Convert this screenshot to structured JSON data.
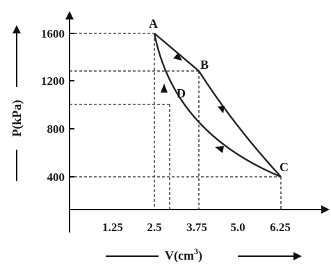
{
  "x_axis": {
    "label_main": "V(cm",
    "label_sup": "3",
    "label_end": ")",
    "ticks": [
      "1.25",
      "2.5",
      "3.75",
      "5.0",
      "6.25"
    ]
  },
  "y_axis": {
    "label": "P(kPa)",
    "ticks": [
      "1600",
      "1200",
      "800",
      "400"
    ]
  },
  "points": [
    {
      "name": "A",
      "V": 2.5,
      "P": 1600
    },
    {
      "name": "B",
      "V": 3.75,
      "P": 1275
    },
    {
      "name": "C",
      "V": 6.25,
      "P": 400
    },
    {
      "name": "D",
      "V": 3.0,
      "P": 1000
    }
  ],
  "cycle": [
    "A → B",
    "B → C",
    "C → A via D"
  ]
}
